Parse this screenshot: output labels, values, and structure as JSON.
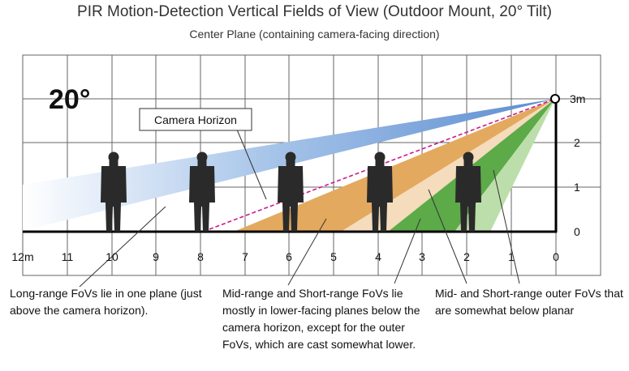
{
  "header": {
    "title": "PIR Motion-Detection Vertical Fields of View (Outdoor Mount, 20° Tilt)",
    "subtitle": "Center Plane (containing camera-facing direction)"
  },
  "tilt_label": "20°",
  "camera_horizon_label": "Camera Horizon",
  "x_axis": {
    "ticks": [
      "12m",
      "11",
      "10",
      "9",
      "8",
      "7",
      "6",
      "5",
      "4",
      "3",
      "2",
      "1",
      "0"
    ]
  },
  "y_axis": {
    "ticks": [
      "3m",
      "2",
      "1",
      "0"
    ]
  },
  "colors": {
    "long_range": "#4f81c7",
    "mid_range": "#e2a55a",
    "mid_range_outer": "#f2d9b6",
    "short_range": "#5aa845",
    "short_range_outer": "#b4dba2",
    "horizon_line": "#cc1a8c",
    "grid": "#555555",
    "figure": "#2a2a2a"
  },
  "annotations": {
    "long_range": "Long-range FoVs lie in one plane (just above the camera horizon).",
    "mid_short": "Mid-range and Short-range FoVs lie mostly in lower-facing planes below the camera horizon, except for the outer FoVs, which are cast somewhat lower.",
    "outer": "Mid- and Short-range outer FoVs that are somewhat below planar"
  }
}
